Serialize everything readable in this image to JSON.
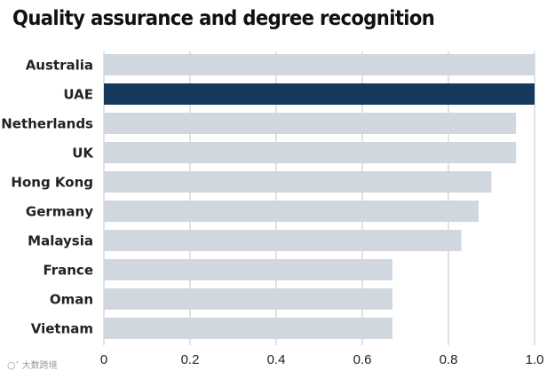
{
  "chart_data": {
    "type": "bar",
    "orientation": "horizontal",
    "title": "Quality assurance and degree recognition",
    "categories": [
      "Australia",
      "UAE",
      "Netherlands",
      "UK",
      "Hong Kong",
      "Germany",
      "Malaysia",
      "France",
      "Oman",
      "Vietnam"
    ],
    "values": [
      1.0,
      1.0,
      0.957,
      0.957,
      0.9,
      0.87,
      0.83,
      0.67,
      0.67,
      0.67
    ],
    "highlight": "UAE",
    "xlim": [
      0,
      1.0
    ],
    "xticks": [
      0,
      0.2,
      0.4,
      0.6,
      0.8,
      1.0
    ],
    "xtick_labels": [
      "0",
      "0.2",
      "0.4",
      "0.6",
      "0.8",
      "1.0"
    ],
    "grid": "vertical",
    "legend": "none",
    "xlabel": "",
    "ylabel": ""
  },
  "colors": {
    "bar": "#d0d7df",
    "highlight": "#15395c",
    "grid": "#c4c4c4",
    "text": "#222222"
  },
  "watermark": {
    "icon": "weibo-icon",
    "text": "大数跨境"
  }
}
